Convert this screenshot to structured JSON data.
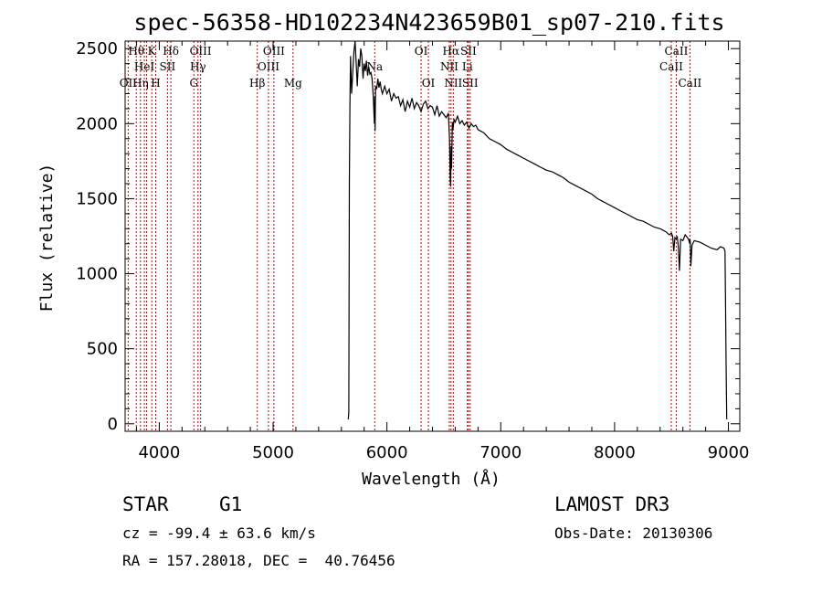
{
  "chart_data": {
    "type": "line",
    "title": "spec-56358-HD102234N423659B01_sp07-210.fits",
    "xlabel": "Wavelength (Å)",
    "ylabel": "Flux (relative)",
    "xlim": [
      3700,
      9100
    ],
    "ylim": [
      -50,
      2550
    ],
    "xticks": [
      4000,
      5000,
      6000,
      7000,
      8000,
      9000
    ],
    "xtick_labels": [
      "4000",
      "5000",
      "6000",
      "7000",
      "8000",
      "9000"
    ],
    "yticks": [
      0,
      500,
      1000,
      1500,
      2000,
      2500
    ],
    "ytick_labels": [
      "0",
      "500",
      "1000",
      "1500",
      "2000",
      "2500"
    ],
    "series": [
      {
        "name": "flux",
        "x": [
          5660,
          5665,
          5670,
          5675,
          5680,
          5690,
          5700,
          5710,
          5720,
          5730,
          5740,
          5750,
          5760,
          5770,
          5780,
          5790,
          5800,
          5810,
          5820,
          5830,
          5840,
          5850,
          5860,
          5870,
          5880,
          5890,
          5893,
          5896,
          5900,
          5910,
          5920,
          5930,
          5940,
          5950,
          5960,
          5980,
          6000,
          6020,
          6040,
          6060,
          6080,
          6100,
          6120,
          6140,
          6160,
          6180,
          6200,
          6220,
          6240,
          6260,
          6280,
          6300,
          6320,
          6340,
          6360,
          6380,
          6400,
          6420,
          6440,
          6460,
          6480,
          6500,
          6520,
          6540,
          6550,
          6556,
          6560,
          6564,
          6568,
          6575,
          6580,
          6590,
          6600,
          6620,
          6640,
          6660,
          6680,
          6700,
          6720,
          6740,
          6760,
          6780,
          6800,
          6850,
          6900,
          6950,
          7000,
          7050,
          7100,
          7150,
          7200,
          7250,
          7300,
          7350,
          7400,
          7450,
          7500,
          7550,
          7600,
          7650,
          7700,
          7750,
          7800,
          7850,
          7900,
          7950,
          8000,
          8050,
          8100,
          8150,
          8200,
          8250,
          8300,
          8350,
          8400,
          8450,
          8480,
          8500,
          8510,
          8520,
          8530,
          8540,
          8550,
          8560,
          8570,
          8580,
          8600,
          8620,
          8640,
          8650,
          8660,
          8662,
          8665,
          8670,
          8680,
          8700,
          8750,
          8800,
          8850,
          8900,
          8930,
          8960,
          8970,
          8975,
          8980,
          8985
        ],
        "values": [
          30,
          80,
          1600,
          2100,
          2450,
          2200,
          2350,
          2480,
          2550,
          2400,
          2250,
          2430,
          2380,
          2500,
          2450,
          2300,
          2400,
          2350,
          2420,
          2320,
          2380,
          2330,
          2340,
          2300,
          2180,
          2000,
          2180,
          1950,
          2250,
          2230,
          2300,
          2240,
          2280,
          2230,
          2200,
          2250,
          2200,
          2230,
          2150,
          2200,
          2170,
          2180,
          2120,
          2160,
          2080,
          2150,
          2110,
          2170,
          2100,
          2140,
          2120,
          2080,
          2130,
          2150,
          2100,
          2120,
          2110,
          2060,
          2120,
          2050,
          2080,
          2060,
          2040,
          2070,
          1900,
          1650,
          1580,
          1850,
          1700,
          2010,
          1960,
          2030,
          2010,
          2050,
          2000,
          2020,
          1990,
          2010,
          1970,
          2000,
          1980,
          1990,
          1960,
          1940,
          1900,
          1880,
          1860,
          1830,
          1810,
          1790,
          1770,
          1750,
          1730,
          1710,
          1690,
          1680,
          1660,
          1640,
          1610,
          1590,
          1570,
          1550,
          1530,
          1500,
          1480,
          1460,
          1440,
          1420,
          1400,
          1380,
          1360,
          1350,
          1330,
          1310,
          1300,
          1280,
          1260,
          1270,
          1250,
          1150,
          1240,
          1230,
          1250,
          1180,
          1020,
          1230,
          1220,
          1260,
          1240,
          1230,
          1200,
          1230,
          1210,
          1050,
          1190,
          1220,
          1210,
          1190,
          1170,
          1160,
          1180,
          1170,
          1150,
          800,
          400,
          30
        ]
      }
    ],
    "lines": [
      {
        "x": 3727,
        "label": "OII",
        "row": 2
      },
      {
        "x": 3798,
        "label": "Hθ",
        "row": 0
      },
      {
        "x": 3835,
        "label": "Hη",
        "row": 2
      },
      {
        "x": 3869,
        "label": "HeI",
        "row": 1
      },
      {
        "x": 3889,
        "label": "",
        "row": -1
      },
      {
        "x": 3934,
        "label": "K",
        "row": 0
      },
      {
        "x": 3969,
        "label": "H",
        "row": 2
      },
      {
        "x": 4072,
        "label": "SII",
        "row": 1
      },
      {
        "x": 4102,
        "label": "Hδ",
        "row": 0
      },
      {
        "x": 4304,
        "label": "G",
        "row": 2
      },
      {
        "x": 4340,
        "label": "Hγ",
        "row": 1
      },
      {
        "x": 4363,
        "label": "OIII",
        "row": 0
      },
      {
        "x": 4861,
        "label": "Hβ",
        "row": 2
      },
      {
        "x": 4959,
        "label": "OIII",
        "row": 1
      },
      {
        "x": 5007,
        "label": "OIII",
        "row": 0
      },
      {
        "x": 5175,
        "label": "Mg",
        "row": 2
      },
      {
        "x": 5893,
        "label": "Na",
        "row": 1
      },
      {
        "x": 6300,
        "label": "OI",
        "row": 0
      },
      {
        "x": 6364,
        "label": "OI",
        "row": 2
      },
      {
        "x": 6548,
        "label": "NII",
        "row": 1
      },
      {
        "x": 6563,
        "label": "Hα",
        "row": 0
      },
      {
        "x": 6583,
        "label": "NII",
        "row": 2
      },
      {
        "x": 6707,
        "label": "Li",
        "row": 1
      },
      {
        "x": 6716,
        "label": "SII",
        "row": 0
      },
      {
        "x": 6731,
        "label": "SII",
        "row": 2
      },
      {
        "x": 8498,
        "label": "CaII",
        "row": 1
      },
      {
        "x": 8542,
        "label": "CaII",
        "row": 0
      },
      {
        "x": 8662,
        "label": "CaII",
        "row": 2
      }
    ]
  },
  "info": {
    "class": "STAR",
    "subclass": "G1",
    "survey": "LAMOST DR3",
    "cz": "cz = -99.4 ± 63.6 km/s",
    "obs_date": "Obs-Date: 20130306",
    "coords": "RA = 157.28018, DEC =  40.76456"
  },
  "colors": {
    "spectrum": "#000000",
    "line_marker": "#cc0000",
    "axes": "#000000",
    "background": "#ffffff"
  }
}
